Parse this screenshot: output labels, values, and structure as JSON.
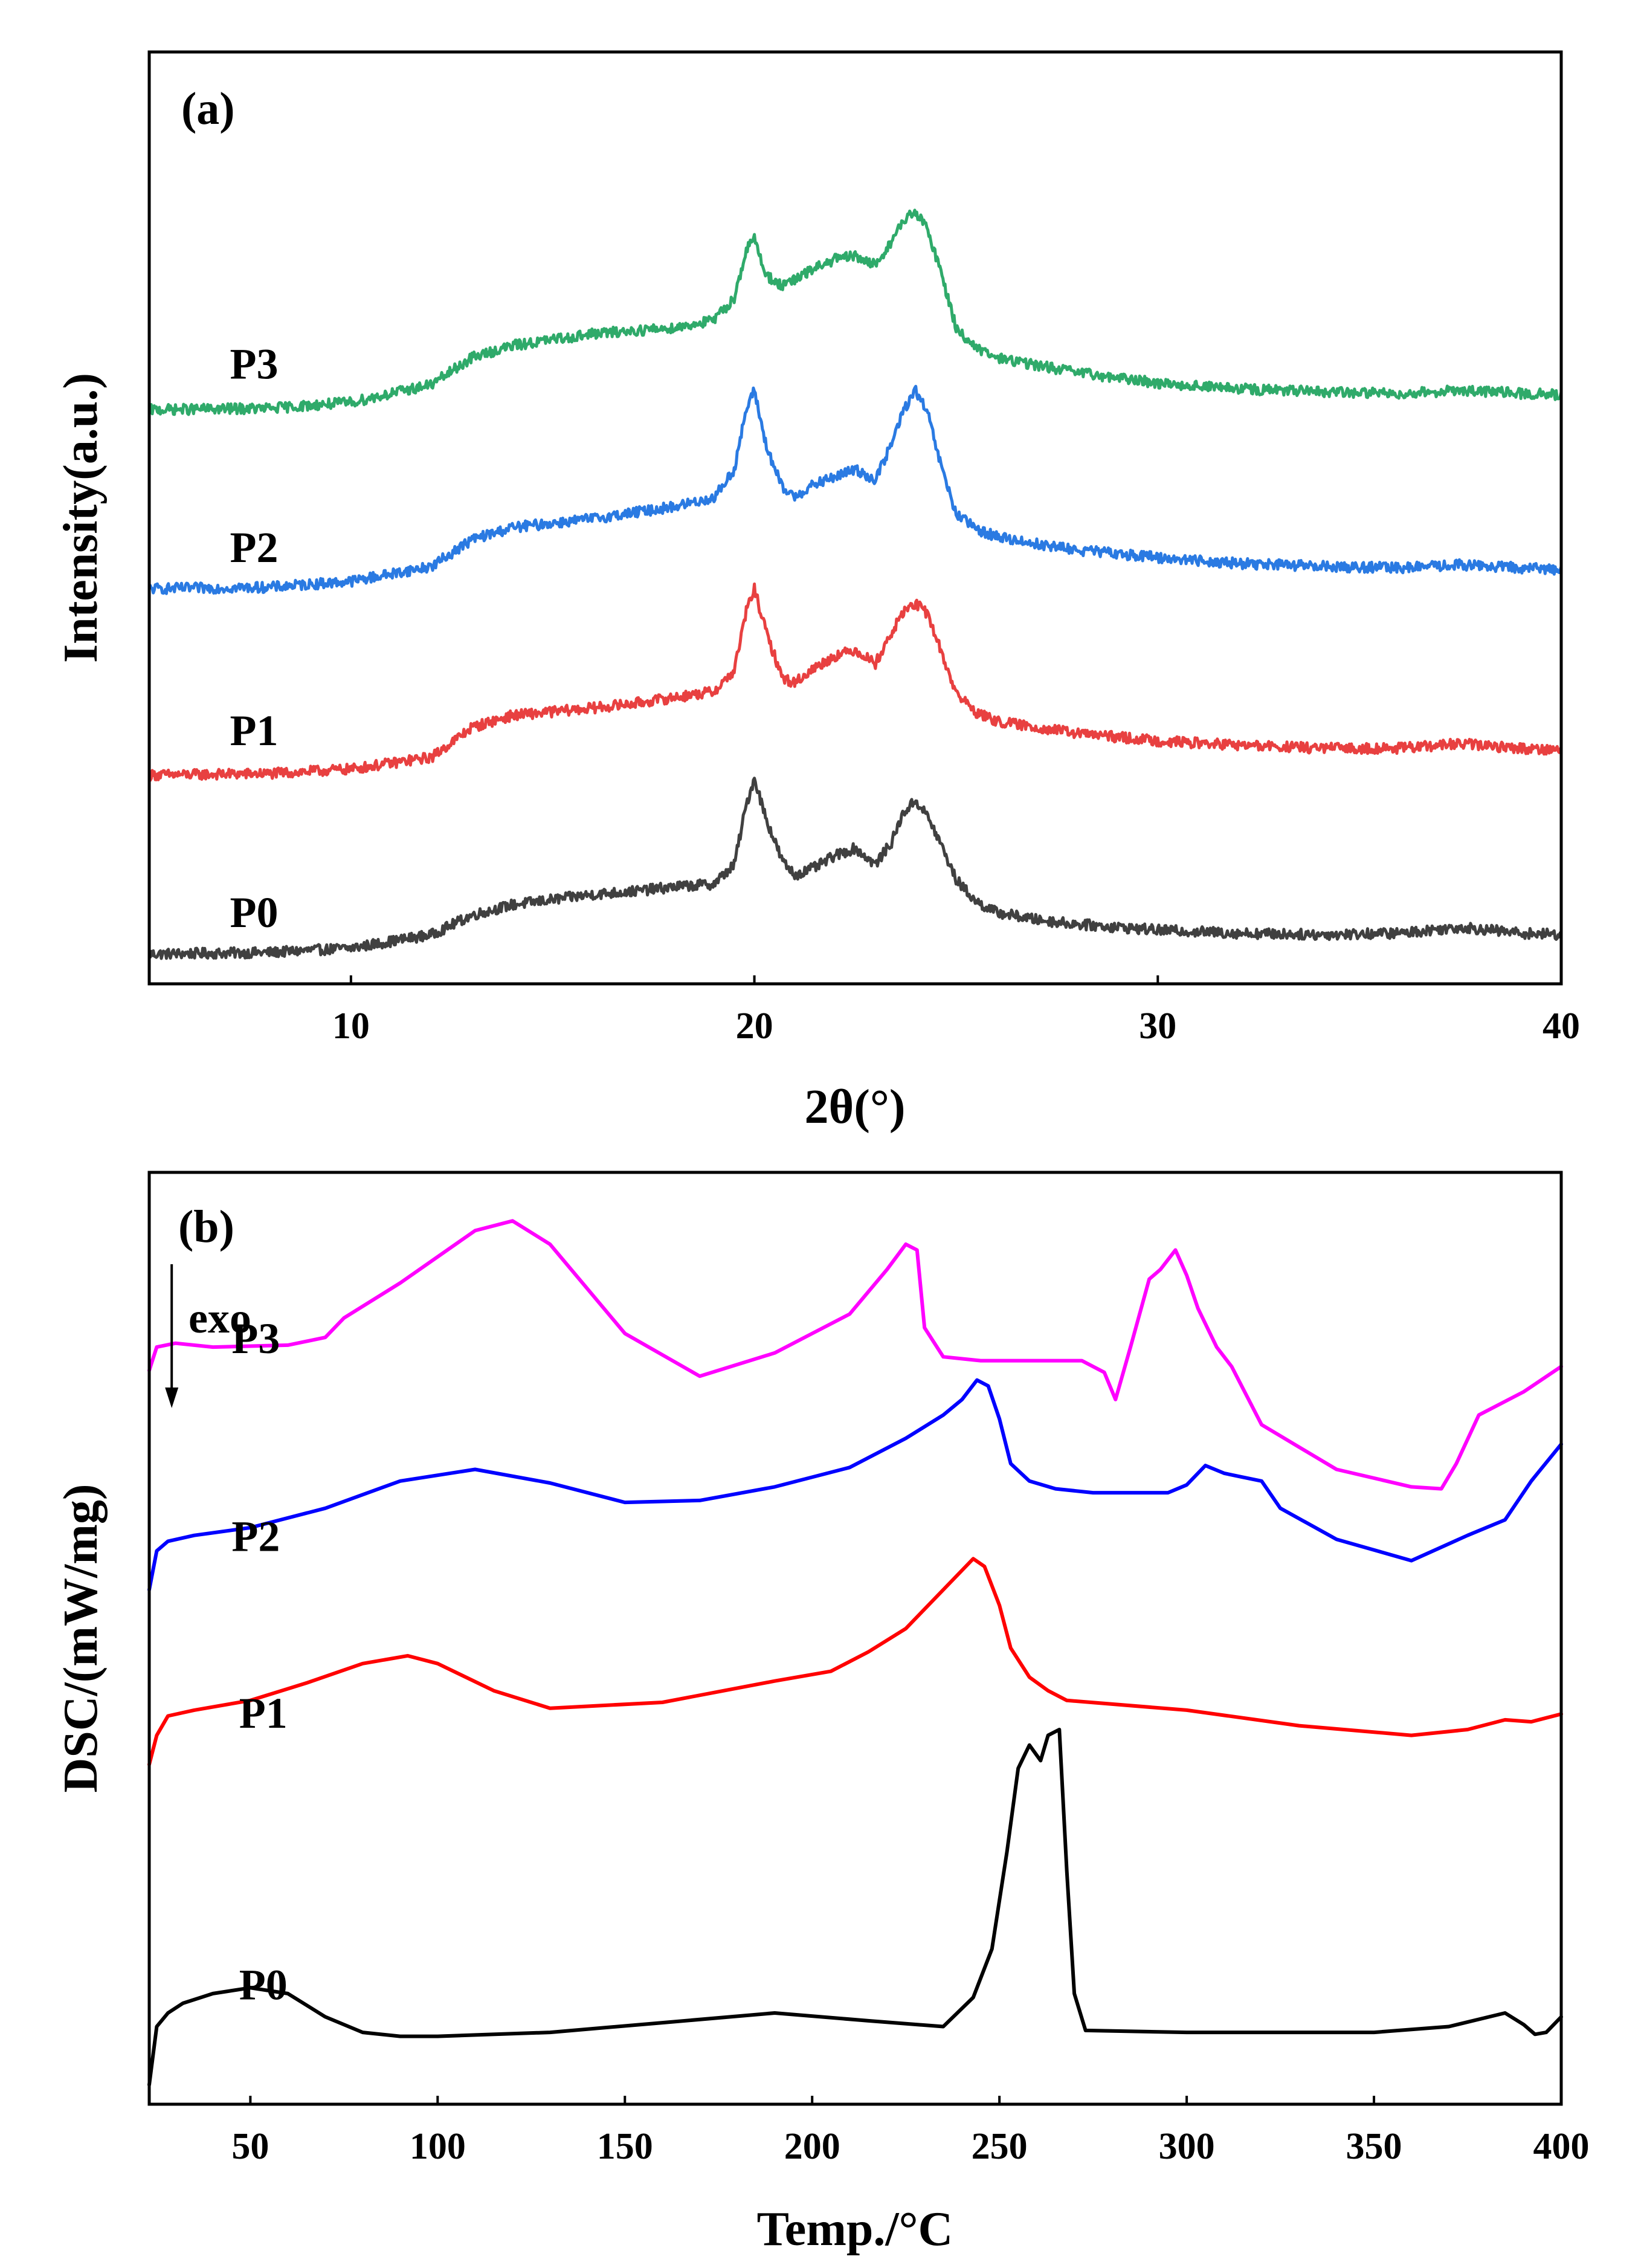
{
  "chart_data": [
    {
      "type": "line",
      "panel_label": "(a)",
      "xlabel": "2θ(°)",
      "ylabel": "Intensity(a.u.)",
      "xlim": [
        5,
        40
      ],
      "xticks": [
        10,
        20,
        30,
        40
      ],
      "yticks": [],
      "grid": false,
      "noise_amplitude": 0.035,
      "series": [
        {
          "name": "P0",
          "color": "#404040",
          "label_at": [
            7,
            0.38
          ],
          "x": [
            5,
            8,
            10,
            12,
            13,
            14,
            16,
            17,
            18,
            19,
            19.5,
            19.8,
            20,
            20.3,
            20.7,
            21,
            21.5,
            22,
            22.5,
            23,
            23.4,
            23.7,
            24,
            24.3,
            24.6,
            25,
            25.5,
            26,
            27,
            28,
            30,
            32,
            34,
            36,
            37.5,
            39,
            40
          ],
          "y": [
            0.2,
            0.21,
            0.24,
            0.33,
            0.46,
            0.53,
            0.6,
            0.62,
            0.65,
            0.67,
            0.8,
            1.2,
            1.38,
            1.1,
            0.82,
            0.73,
            0.78,
            0.86,
            0.91,
            0.8,
            0.95,
            1.15,
            1.23,
            1.12,
            0.95,
            0.7,
            0.55,
            0.48,
            0.43,
            0.4,
            0.36,
            0.34,
            0.33,
            0.34,
            0.38,
            0.34,
            0.33
          ]
        },
        {
          "name": "P1",
          "color": "#e84040",
          "label_at": [
            7,
            1.6
          ],
          "x": [
            5,
            8,
            10,
            12,
            13,
            14,
            16,
            17,
            18,
            19,
            19.5,
            19.8,
            20,
            20.3,
            20.7,
            21,
            21.5,
            22,
            22.5,
            23,
            23.4,
            23.7,
            24,
            24.3,
            24.6,
            25,
            25.5,
            26,
            27,
            28,
            30,
            32,
            34,
            36,
            37.5,
            39,
            40
          ],
          "y": [
            1.4,
            1.41,
            1.44,
            1.52,
            1.72,
            1.8,
            1.85,
            1.88,
            1.92,
            1.96,
            2.1,
            2.5,
            2.65,
            2.35,
            2.05,
            2.02,
            2.12,
            2.2,
            2.24,
            2.15,
            2.35,
            2.5,
            2.55,
            2.48,
            2.25,
            1.95,
            1.82,
            1.76,
            1.72,
            1.68,
            1.63,
            1.6,
            1.58,
            1.58,
            1.61,
            1.58,
            1.57
          ]
        },
        {
          "name": "P2",
          "color": "#2a7ae2",
          "label_at": [
            7,
            2.83
          ],
          "x": [
            5,
            8,
            10,
            12,
            13,
            14,
            16,
            17,
            18,
            19,
            19.5,
            19.8,
            20,
            20.3,
            20.7,
            21,
            21.5,
            22,
            22.5,
            23,
            23.4,
            23.7,
            24,
            24.3,
            24.6,
            25,
            25.5,
            26,
            27,
            28,
            30,
            32,
            34,
            36,
            37.5,
            39,
            40
          ],
          "y": [
            2.65,
            2.66,
            2.7,
            2.8,
            2.98,
            3.06,
            3.12,
            3.16,
            3.2,
            3.26,
            3.45,
            3.85,
            3.98,
            3.6,
            3.32,
            3.27,
            3.35,
            3.4,
            3.45,
            3.38,
            3.62,
            3.85,
            3.98,
            3.82,
            3.5,
            3.15,
            3.05,
            3.0,
            2.95,
            2.91,
            2.86,
            2.82,
            2.8,
            2.79,
            2.81,
            2.79,
            2.78
          ]
        },
        {
          "name": "P3",
          "color": "#2faa6a",
          "label_at": [
            7,
            4.06
          ],
          "x": [
            5,
            8,
            10,
            12,
            13,
            14,
            16,
            17,
            18,
            19,
            19.5,
            19.8,
            20,
            20.3,
            20.7,
            21,
            21.5,
            22,
            22.5,
            23,
            23.4,
            23.7,
            24,
            24.3,
            24.6,
            25,
            25.5,
            26,
            27,
            28,
            30,
            32,
            34,
            36,
            37.5,
            39,
            40
          ],
          "y": [
            3.85,
            3.86,
            3.9,
            4.02,
            4.2,
            4.28,
            4.36,
            4.38,
            4.4,
            4.45,
            4.6,
            4.92,
            5.0,
            4.75,
            4.68,
            4.72,
            4.8,
            4.86,
            4.88,
            4.82,
            4.98,
            5.12,
            5.18,
            5.05,
            4.8,
            4.4,
            4.26,
            4.2,
            4.15,
            4.1,
            4.03,
            3.99,
            3.97,
            3.96,
            3.98,
            3.96,
            3.95
          ]
        }
      ],
      "ylim": [
        0,
        6.25
      ]
    },
    {
      "type": "line",
      "panel_label": "(b)",
      "xlabel": "Temp./°C",
      "ylabel": "DSC/(mW/mg)",
      "xlim": [
        23,
        400
      ],
      "xticks": [
        50,
        100,
        150,
        200,
        250,
        300,
        350,
        400
      ],
      "yticks": [],
      "grid": false,
      "annotation": {
        "text": "exo",
        "arrow": "down",
        "x": 29
      },
      "series": [
        {
          "name": "P0",
          "color": "#000000",
          "label_at": [
            47,
            0.19
          ],
          "x": [
            23,
            25,
            28,
            32,
            40,
            50,
            60,
            70,
            80,
            90,
            100,
            130,
            160,
            190,
            215,
            235,
            243,
            248,
            252,
            255,
            258,
            261,
            263,
            266,
            268,
            270,
            273,
            300,
            350,
            370,
            385,
            390,
            393,
            396,
            400
          ],
          "y": [
            -0.25,
            0.05,
            0.12,
            0.17,
            0.22,
            0.25,
            0.22,
            0.1,
            0.02,
            0.0,
            0.0,
            0.02,
            0.07,
            0.12,
            0.08,
            0.05,
            0.2,
            0.45,
            0.95,
            1.38,
            1.5,
            1.42,
            1.55,
            1.58,
            0.85,
            0.22,
            0.03,
            0.02,
            0.02,
            0.05,
            0.12,
            0.06,
            0.01,
            0.02,
            0.1
          ]
        },
        {
          "name": "P1",
          "color": "#ff0000",
          "label_at": [
            47,
            1.59
          ],
          "x": [
            23,
            25,
            28,
            35,
            50,
            65,
            80,
            92,
            100,
            115,
            130,
            160,
            190,
            205,
            215,
            225,
            235,
            243,
            246,
            250,
            253,
            258,
            263,
            268,
            300,
            330,
            360,
            375,
            385,
            392,
            400
          ],
          "y": [
            1.4,
            1.55,
            1.65,
            1.68,
            1.73,
            1.82,
            1.92,
            1.96,
            1.92,
            1.78,
            1.69,
            1.72,
            1.83,
            1.88,
            1.98,
            2.1,
            2.3,
            2.46,
            2.42,
            2.22,
            2.0,
            1.85,
            1.78,
            1.73,
            1.68,
            1.6,
            1.55,
            1.58,
            1.63,
            1.62,
            1.66
          ]
        },
        {
          "name": "P2",
          "color": "#0000ff",
          "label_at": [
            45,
            2.5
          ],
          "x": [
            23,
            25,
            28,
            35,
            50,
            70,
            90,
            110,
            130,
            150,
            170,
            190,
            210,
            225,
            235,
            240,
            244,
            247,
            250,
            253,
            258,
            265,
            275,
            295,
            300,
            305,
            310,
            315,
            320,
            325,
            340,
            360,
            375,
            385,
            392,
            400
          ],
          "y": [
            2.3,
            2.5,
            2.55,
            2.58,
            2.62,
            2.72,
            2.86,
            2.92,
            2.85,
            2.75,
            2.76,
            2.83,
            2.93,
            3.08,
            3.2,
            3.28,
            3.38,
            3.35,
            3.18,
            2.95,
            2.86,
            2.82,
            2.8,
            2.8,
            2.84,
            2.94,
            2.9,
            2.88,
            2.86,
            2.72,
            2.56,
            2.45,
            2.58,
            2.66,
            2.86,
            3.05
          ]
        },
        {
          "name": "P3",
          "color": "#ff00ff",
          "label_at": [
            45,
            3.52
          ],
          "x": [
            23,
            25,
            30,
            40,
            60,
            70,
            75,
            90,
            110,
            120,
            130,
            150,
            170,
            190,
            200,
            210,
            220,
            225,
            228,
            230,
            235,
            245,
            260,
            272,
            278,
            281,
            285,
            290,
            293,
            297,
            300,
            303,
            308,
            312,
            320,
            340,
            360,
            368,
            372,
            378,
            390,
            400
          ],
          "y": [
            3.43,
            3.55,
            3.57,
            3.55,
            3.56,
            3.6,
            3.7,
            3.88,
            4.15,
            4.2,
            4.08,
            3.62,
            3.4,
            3.52,
            3.62,
            3.72,
            3.95,
            4.08,
            4.05,
            3.65,
            3.5,
            3.48,
            3.48,
            3.48,
            3.42,
            3.28,
            3.55,
            3.9,
            3.95,
            4.05,
            3.92,
            3.75,
            3.55,
            3.45,
            3.15,
            2.92,
            2.83,
            2.82,
            2.95,
            3.2,
            3.32,
            3.45
          ]
        }
      ],
      "ylim": [
        -0.35,
        4.45
      ]
    }
  ]
}
